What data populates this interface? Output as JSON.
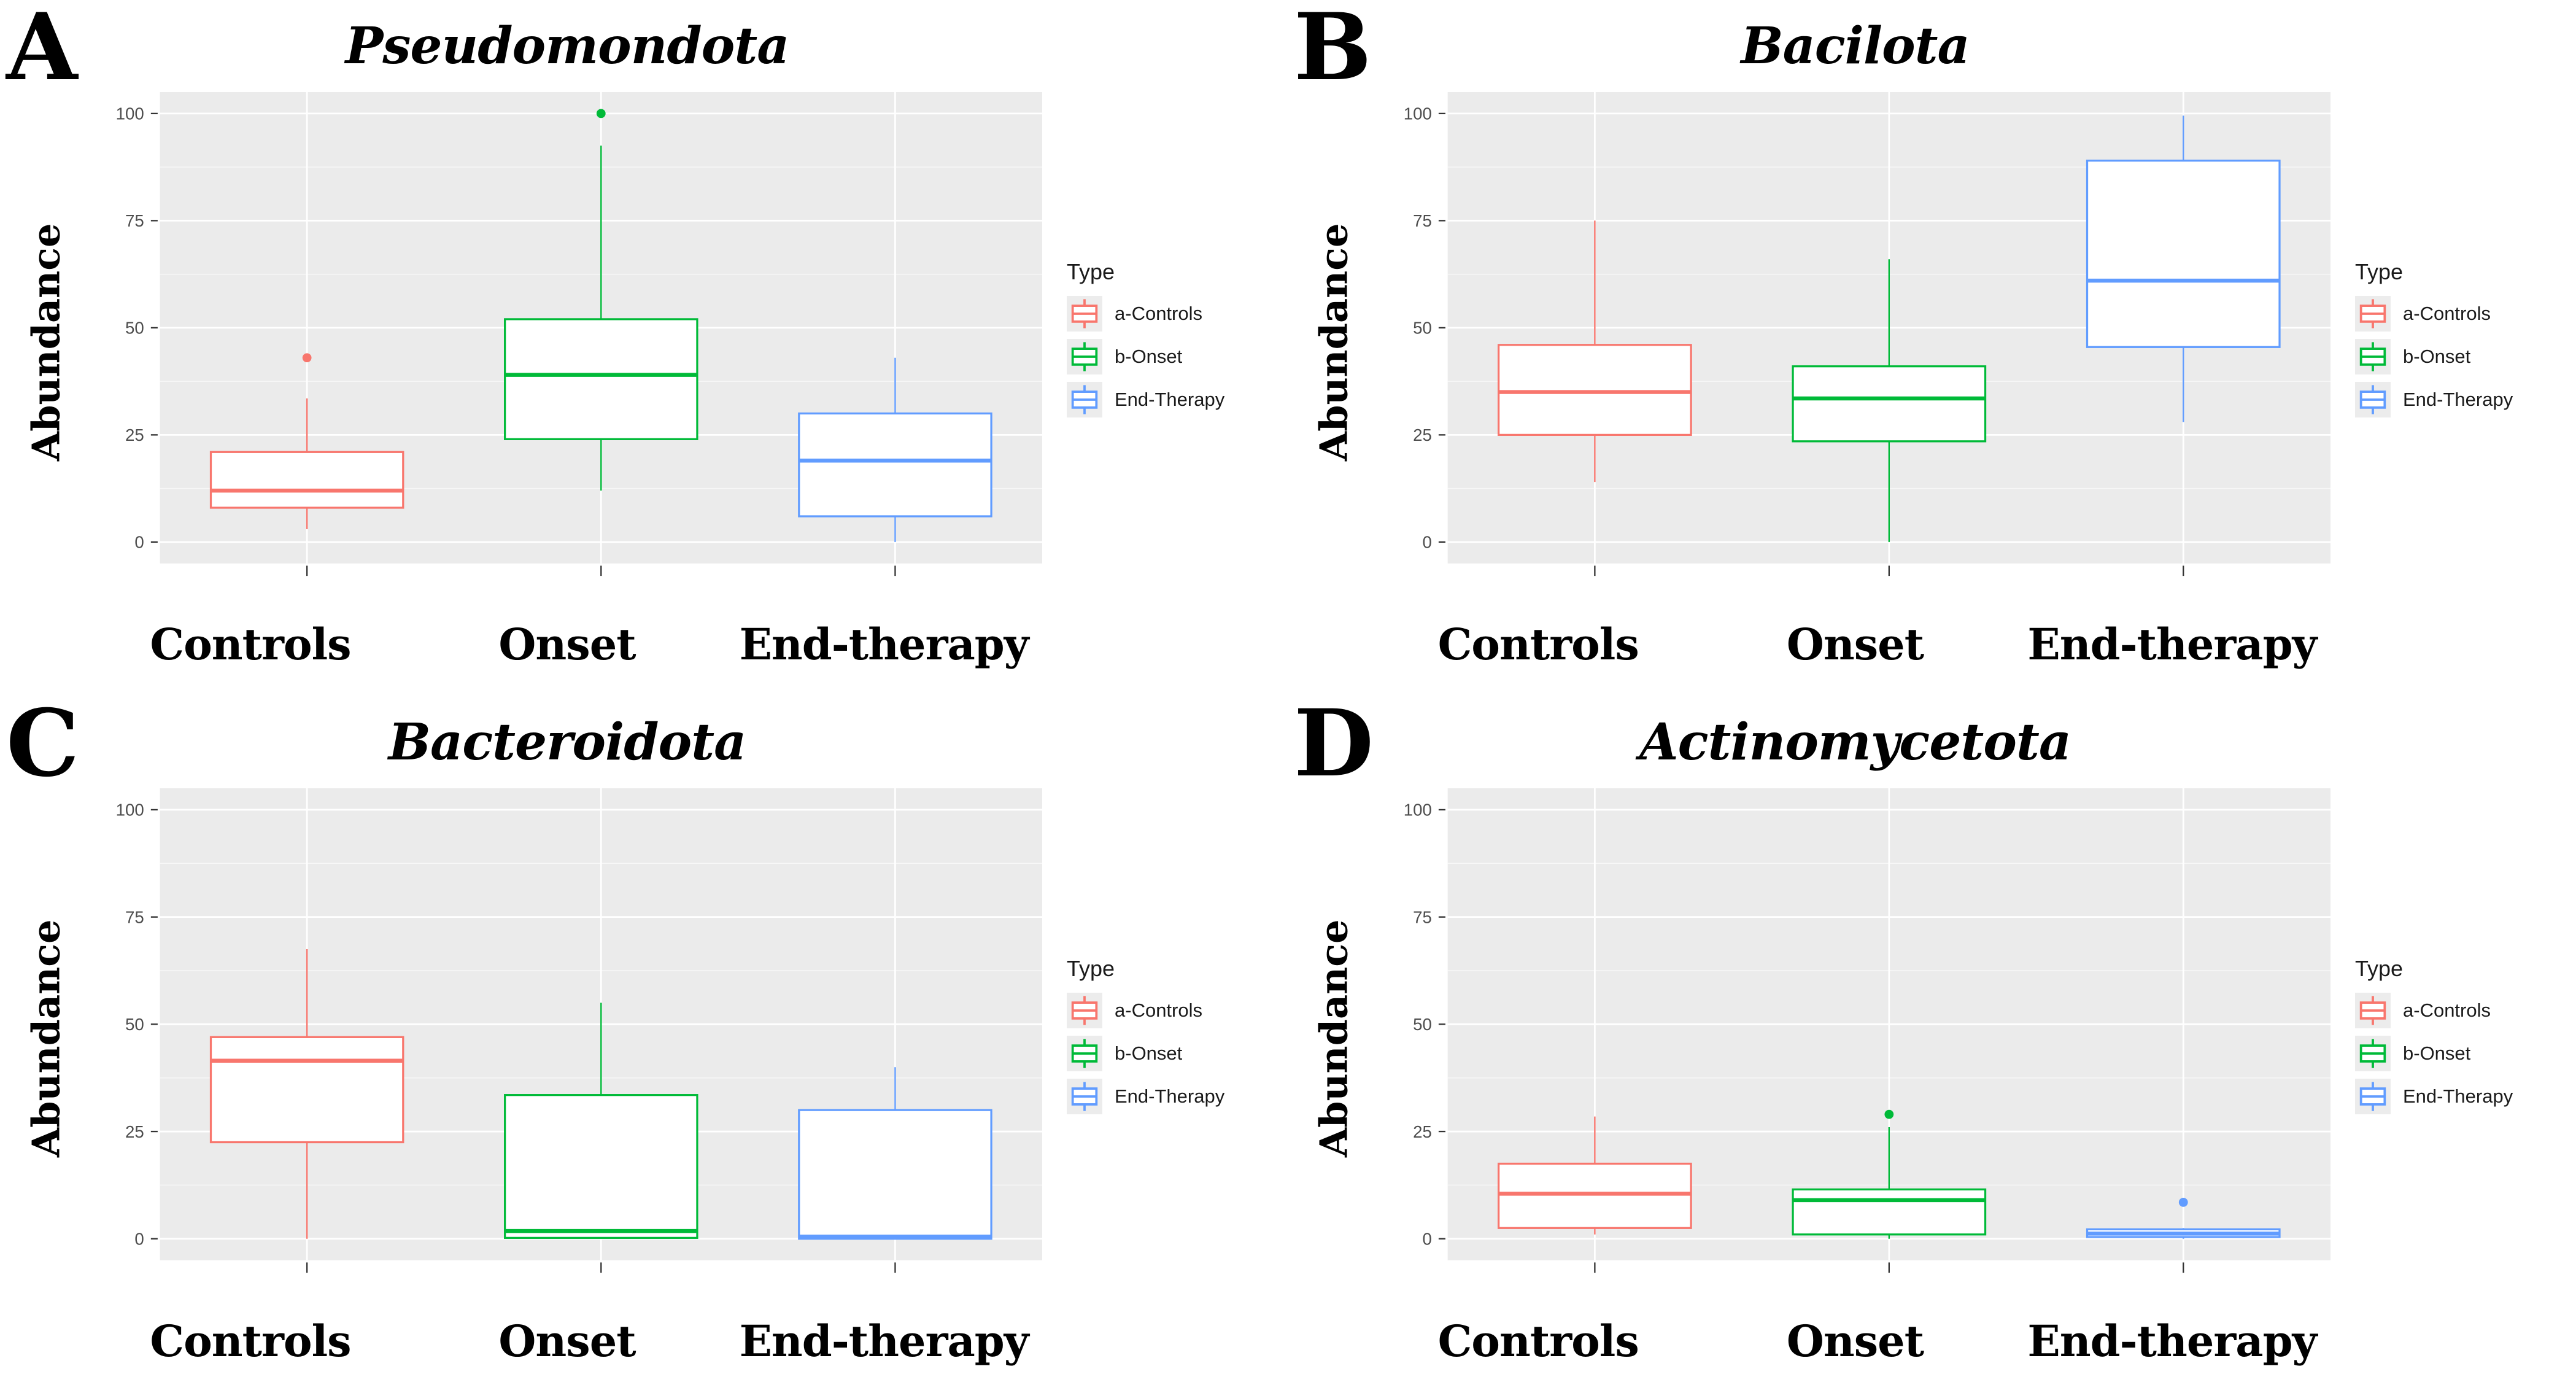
{
  "axis": {
    "y_label": "Abundance",
    "ticks": [
      0,
      25,
      50,
      75,
      100
    ],
    "minor_ticks": [
      12.5,
      37.5,
      62.5,
      87.5
    ],
    "y_domain": [
      -5,
      105
    ]
  },
  "legend": {
    "title": "Type",
    "entries": [
      {
        "label": "a-Controls",
        "color": "#F8766D"
      },
      {
        "label": "b-Onset",
        "color": "#00BA38"
      },
      {
        "label": "End-Therapy",
        "color": "#619CFF"
      }
    ]
  },
  "colors": {
    "panel_bg": "#EBEBEB",
    "grid_major": "#FFFFFF",
    "grid_minor": "#F7F7F7",
    "tick_text": "#4D4D4D",
    "tick_mark": "#333333",
    "box_fill": "#FFFFFF"
  },
  "chart_data": [
    {
      "type": "boxplot",
      "letter": "A",
      "title": "Pseudomondota",
      "ylabel": "Abundance",
      "ylim": [
        0,
        100
      ],
      "categories": [
        "Controls",
        "Onset",
        "End-therapy"
      ],
      "series": [
        {
          "name": "a-Controls",
          "color": "#F8766D",
          "whisker_low": 3,
          "q1": 8,
          "median": 12,
          "q3": 21,
          "whisker_high": 33.5,
          "outliers": [
            43
          ]
        },
        {
          "name": "b-Onset",
          "color": "#00BA38",
          "whisker_low": 12,
          "q1": 24,
          "median": 39,
          "q3": 52,
          "whisker_high": 92.5,
          "outliers": [
            100
          ]
        },
        {
          "name": "End-Therapy",
          "color": "#619CFF",
          "whisker_low": 0,
          "q1": 6,
          "median": 19,
          "q3": 30,
          "whisker_high": 43,
          "outliers": []
        }
      ]
    },
    {
      "type": "boxplot",
      "letter": "B",
      "title": "Bacilota",
      "ylabel": "Abundance",
      "ylim": [
        0,
        100
      ],
      "categories": [
        "Controls",
        "Onset",
        "End-therapy"
      ],
      "series": [
        {
          "name": "a-Controls",
          "color": "#F8766D",
          "whisker_low": 14,
          "q1": 25,
          "median": 35,
          "q3": 46,
          "whisker_high": 75,
          "outliers": []
        },
        {
          "name": "b-Onset",
          "color": "#00BA38",
          "whisker_low": 0,
          "q1": 23.5,
          "median": 33.5,
          "q3": 41,
          "whisker_high": 66,
          "outliers": []
        },
        {
          "name": "End-Therapy",
          "color": "#619CFF",
          "whisker_low": 28,
          "q1": 45.5,
          "median": 61,
          "q3": 89,
          "whisker_high": 99.5,
          "outliers": []
        }
      ]
    },
    {
      "type": "boxplot",
      "letter": "C",
      "title": "Bacteroidota",
      "ylabel": "Abundance",
      "ylim": [
        0,
        100
      ],
      "categories": [
        "Controls",
        "Onset",
        "End-therapy"
      ],
      "series": [
        {
          "name": "a-Controls",
          "color": "#F8766D",
          "whisker_low": 0,
          "q1": 22.5,
          "median": 41.5,
          "q3": 47,
          "whisker_high": 67.5,
          "outliers": []
        },
        {
          "name": "b-Onset",
          "color": "#00BA38",
          "whisker_low": 0,
          "q1": 0.2,
          "median": 1.8,
          "q3": 33.5,
          "whisker_high": 55,
          "outliers": []
        },
        {
          "name": "End-Therapy",
          "color": "#619CFF",
          "whisker_low": 0,
          "q1": 0,
          "median": 0.5,
          "q3": 30,
          "whisker_high": 40,
          "outliers": []
        }
      ]
    },
    {
      "type": "boxplot",
      "letter": "D",
      "title": "Actinomycetota",
      "ylabel": "Abundance",
      "ylim": [
        0,
        100
      ],
      "categories": [
        "Controls",
        "Onset",
        "End-therapy"
      ],
      "series": [
        {
          "name": "a-Controls",
          "color": "#F8766D",
          "whisker_low": 1,
          "q1": 2.5,
          "median": 10.5,
          "q3": 17.5,
          "whisker_high": 28.5,
          "outliers": []
        },
        {
          "name": "b-Onset",
          "color": "#00BA38",
          "whisker_low": 0,
          "q1": 1,
          "median": 9,
          "q3": 11.5,
          "whisker_high": 26,
          "outliers": [
            29
          ]
        },
        {
          "name": "End-Therapy",
          "color": "#619CFF",
          "whisker_low": 0,
          "q1": 0.4,
          "median": 1.2,
          "q3": 2.2,
          "whisker_high": 2.5,
          "outliers": [
            8.5
          ]
        }
      ]
    }
  ]
}
